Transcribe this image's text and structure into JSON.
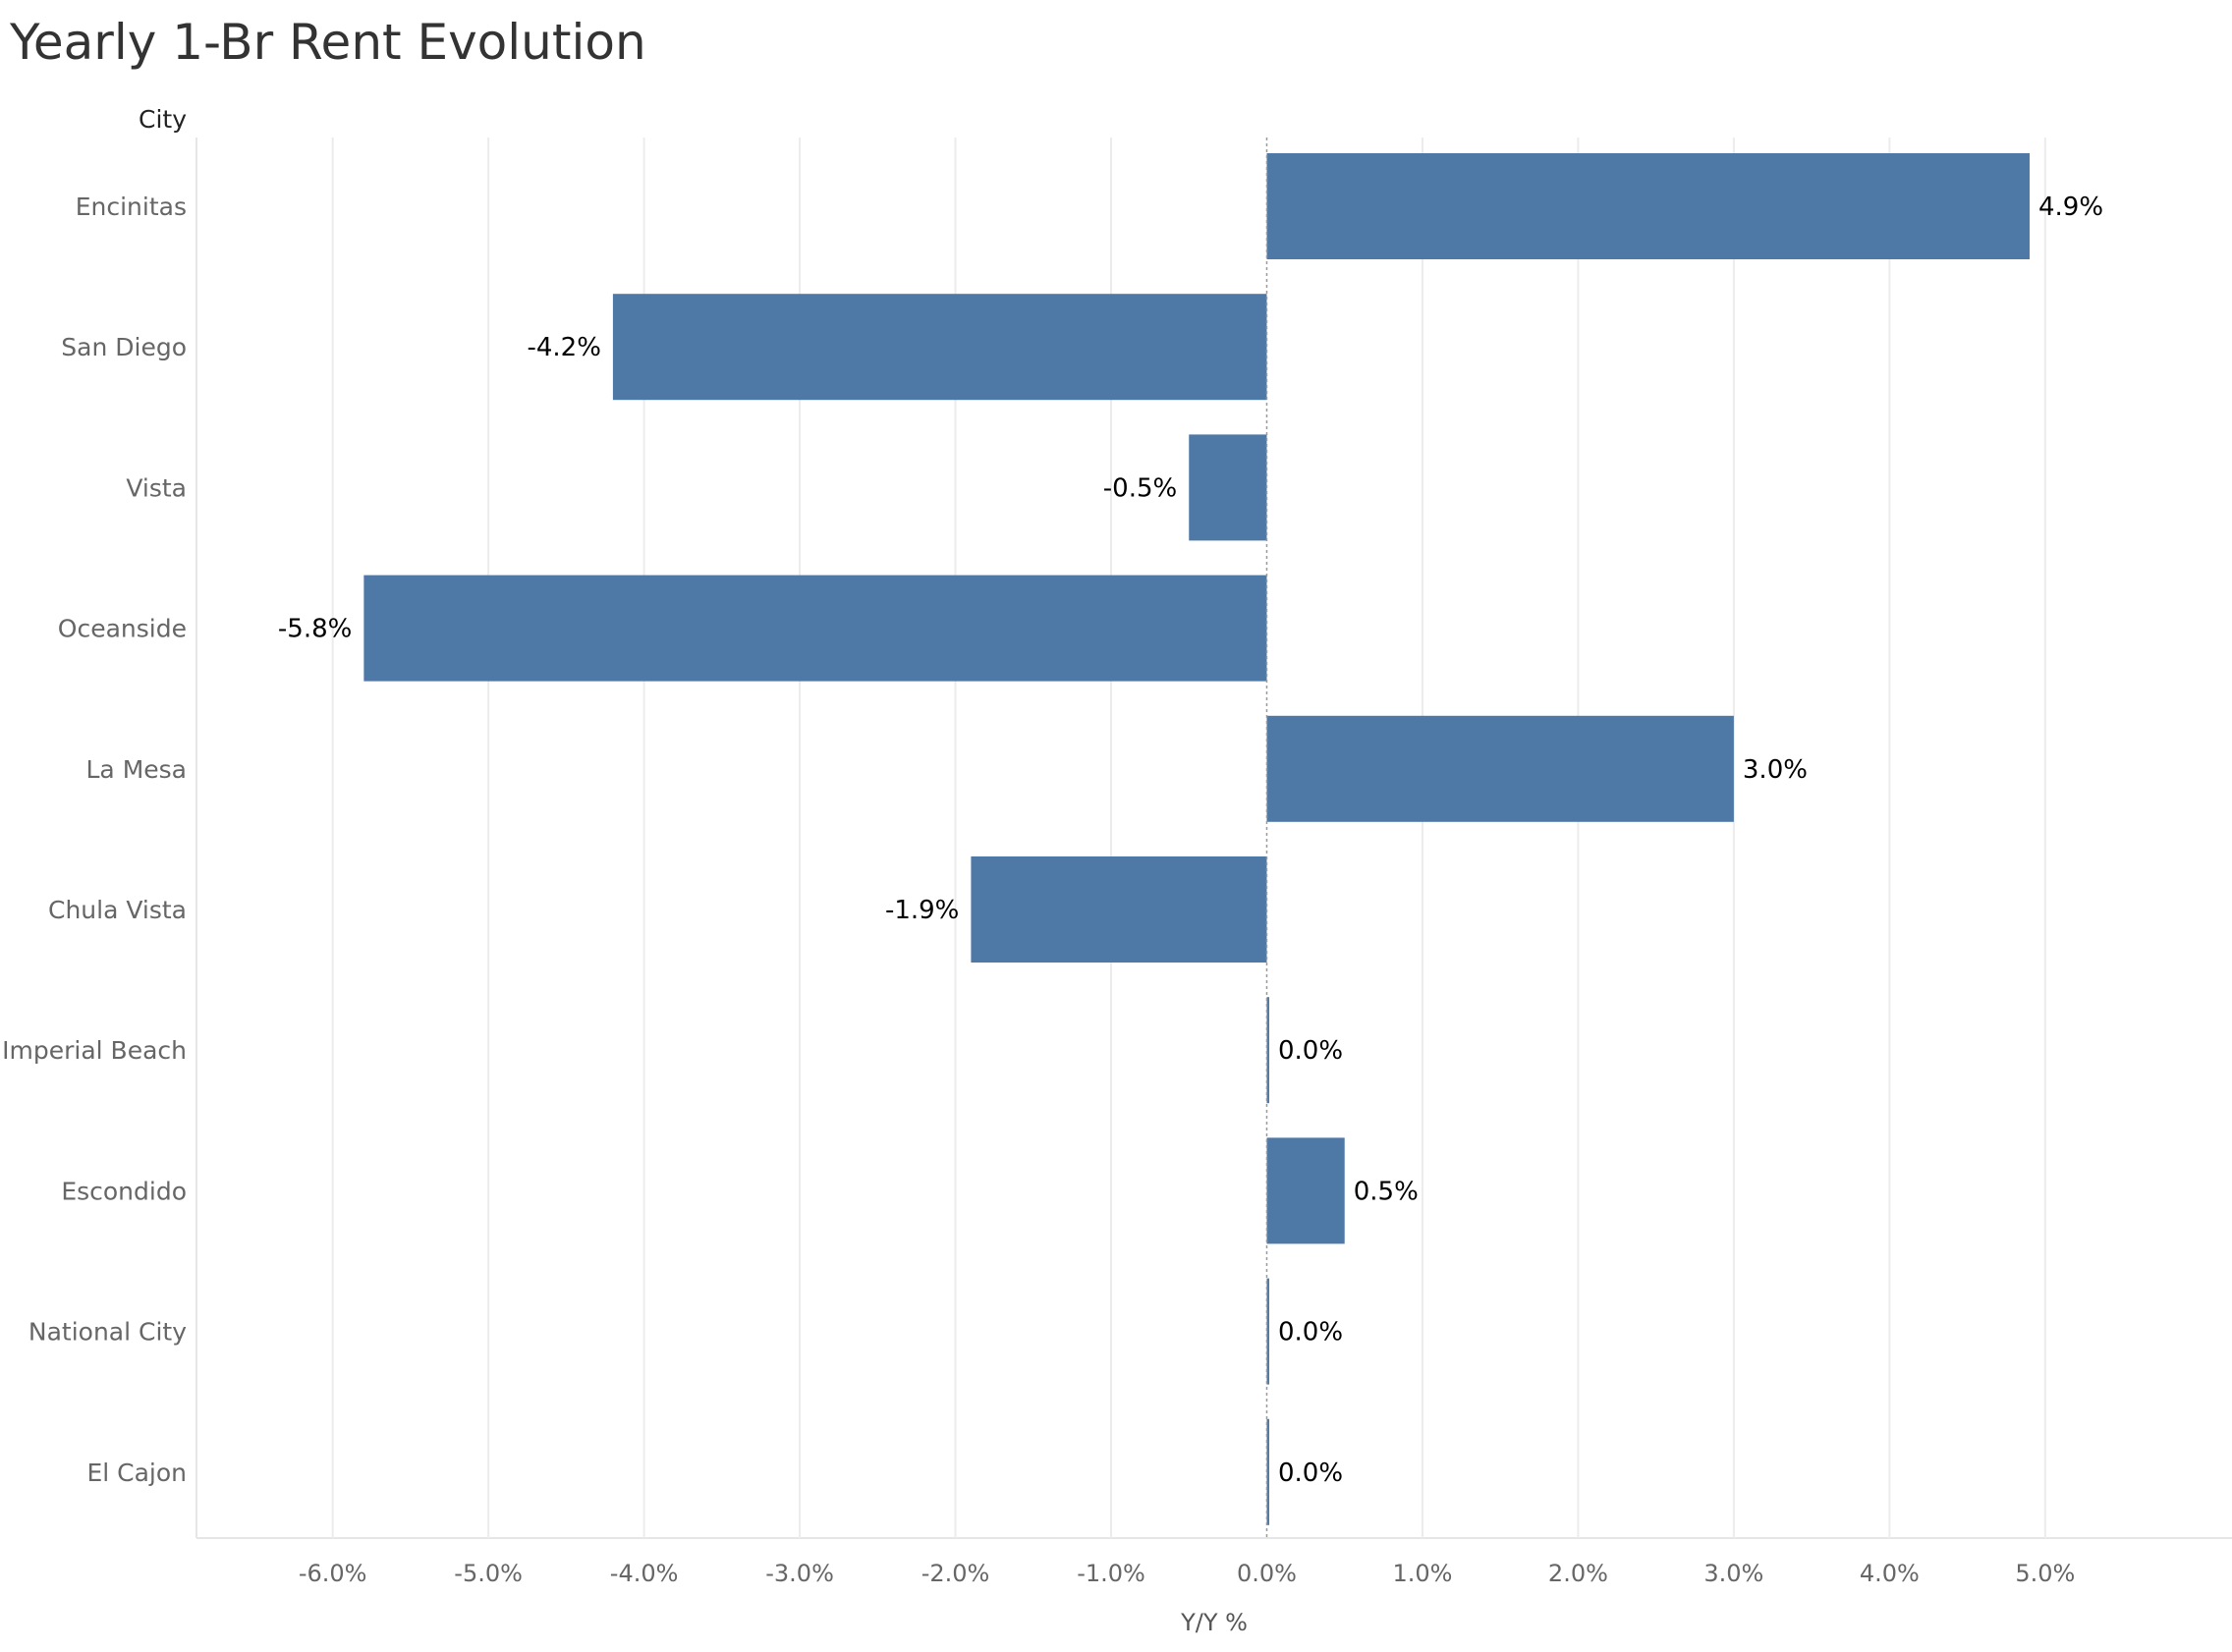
{
  "chart_data": {
    "type": "bar",
    "orientation": "horizontal",
    "title": "Yearly 1-Br Rent Evolution",
    "row_header": "City",
    "xlabel": "Y/Y %",
    "ylabel": "",
    "categories": [
      "Encinitas",
      "San Diego",
      "Vista",
      "Oceanside",
      "La Mesa",
      "Chula Vista",
      "Imperial Beach",
      "Escondido",
      "National City",
      "El Cajon"
    ],
    "values": [
      4.9,
      -4.2,
      -0.5,
      -5.8,
      3.0,
      -1.9,
      0.0,
      0.5,
      0.0,
      0.0
    ],
    "data_labels": [
      "4.9%",
      "-4.2%",
      "-0.5%",
      "-5.8%",
      "3.0%",
      "-1.9%",
      "0.0%",
      "0.5%",
      "0.0%",
      "0.0%"
    ],
    "xlim": [
      -6.875,
      6.2
    ],
    "x_ticks": [
      -6,
      -5,
      -4,
      -3,
      -2,
      -1,
      0,
      1,
      2,
      3,
      4,
      5
    ],
    "x_tick_labels": [
      "-6.0%",
      "-5.0%",
      "-4.0%",
      "-3.0%",
      "-2.0%",
      "-1.0%",
      "0.0%",
      "1.0%",
      "2.0%",
      "3.0%",
      "4.0%",
      "5.0%"
    ],
    "grid": true,
    "zero_line": "dashed",
    "bar_color": "#4e79a7",
    "gridline_color": "#ececec",
    "legend": "none"
  }
}
